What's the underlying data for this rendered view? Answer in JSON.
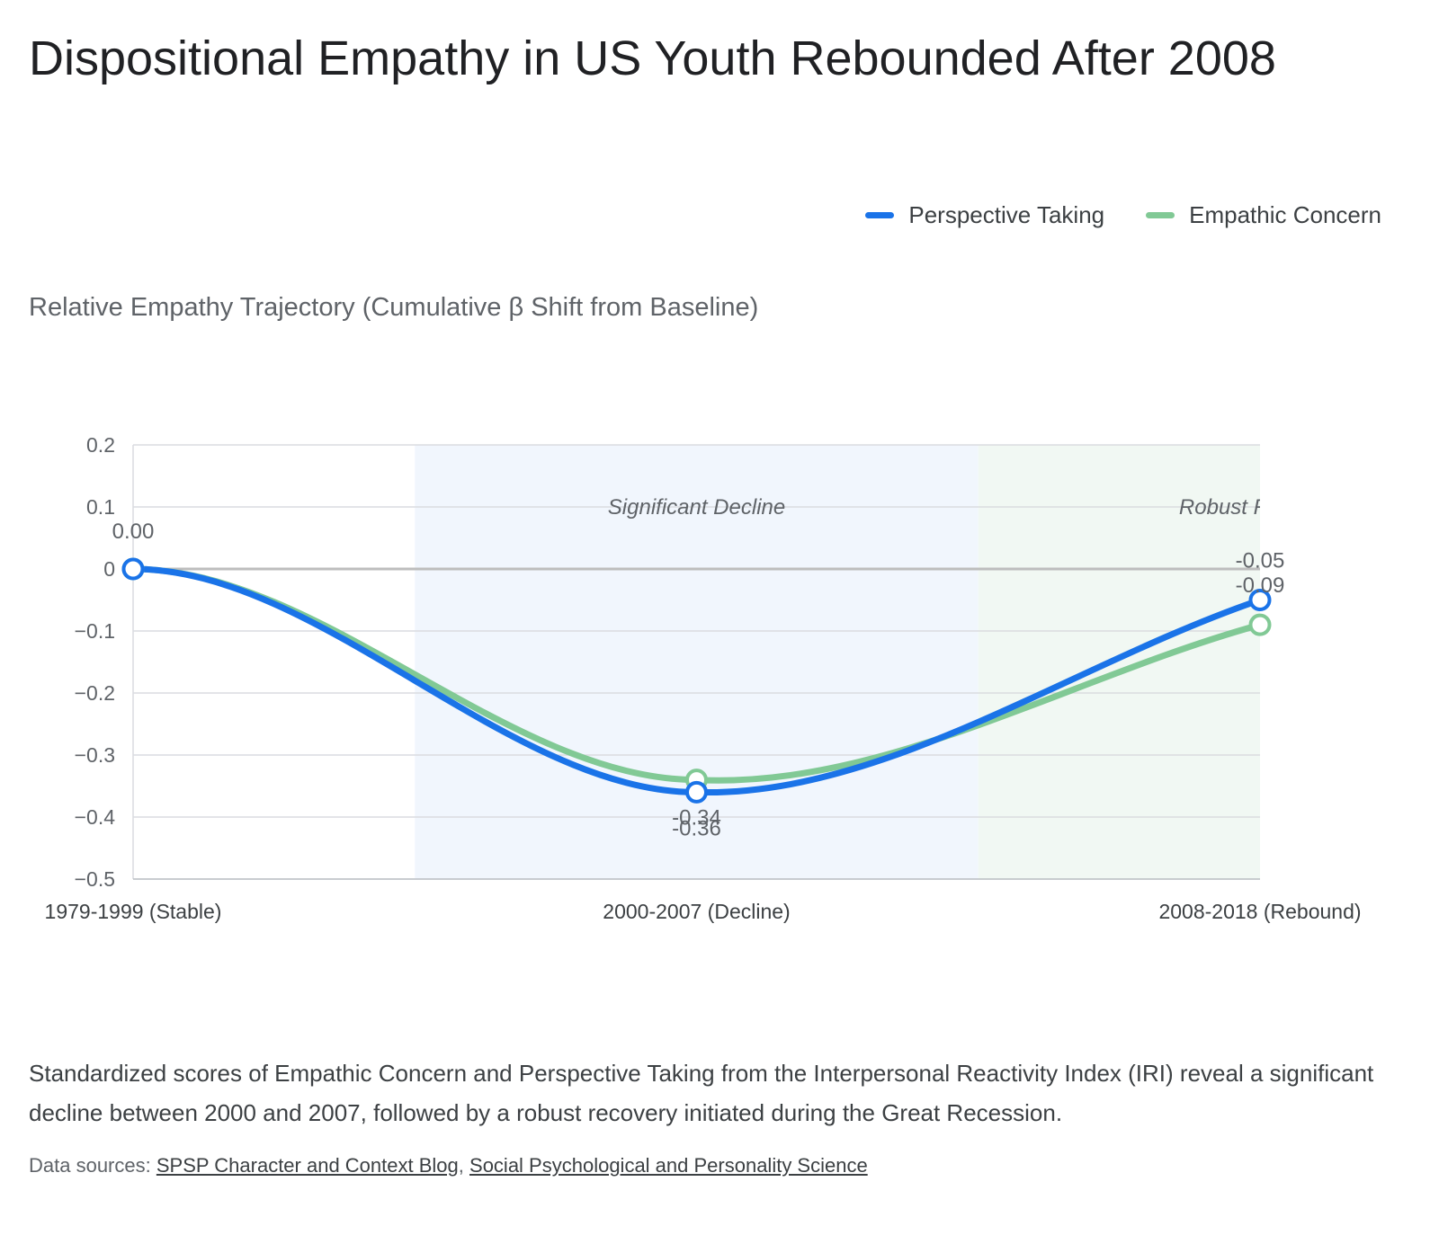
{
  "title": "Dispositional Empathy in US Youth Rebounded After 2008",
  "subtitle": "Relative Empathy Trajectory (Cumulative β Shift from Baseline)",
  "description": "Standardized scores of Empathic Concern and Perspective Taking from the Interpersonal Reactivity Index (IRI) reveal a significant decline between 2000 and 2007, followed by a robust recovery initiated during the Great Recession.",
  "sources": {
    "prefix": "Data sources:",
    "separator": ",",
    "links": [
      "SPSP Character and Context Blog",
      "Social Psychological and Personality Science"
    ]
  },
  "chart_data": {
    "type": "line",
    "categories": [
      "1979-1999 (Stable)",
      "2000-2007 (Decline)",
      "2008-2018 (Rebound)"
    ],
    "series": [
      {
        "name": "Perspective Taking",
        "values": [
          0.0,
          -0.36,
          -0.05
        ],
        "labels": [
          "0.00",
          "-0.36",
          "-0.05"
        ],
        "color": "#1a73e8"
      },
      {
        "name": "Empathic Concern",
        "values": [
          0.0,
          -0.34,
          -0.09
        ],
        "labels": [
          "",
          "-0.34",
          "-0.09"
        ],
        "color": "#81c995"
      }
    ],
    "ylim": [
      -0.5,
      0.2
    ],
    "yticks": [
      0.2,
      0.1,
      0,
      -0.1,
      -0.2,
      -0.3,
      -0.4,
      -0.5
    ],
    "ytick_labels": [
      "0.2",
      "0.1",
      "0",
      "−0.1",
      "−0.2",
      "−0.3",
      "−0.4",
      "−0.5"
    ],
    "baseline": 0,
    "smooth": true,
    "grid": true,
    "legend": "top-right",
    "bands": [
      {
        "from": 0.5,
        "to": 1.5,
        "label": "Significant Decline",
        "color": "#f1f6fd"
      },
      {
        "from": 1.5,
        "to": 2.5,
        "label": "Robust Rebound",
        "color": "#f1f8f3"
      }
    ]
  }
}
